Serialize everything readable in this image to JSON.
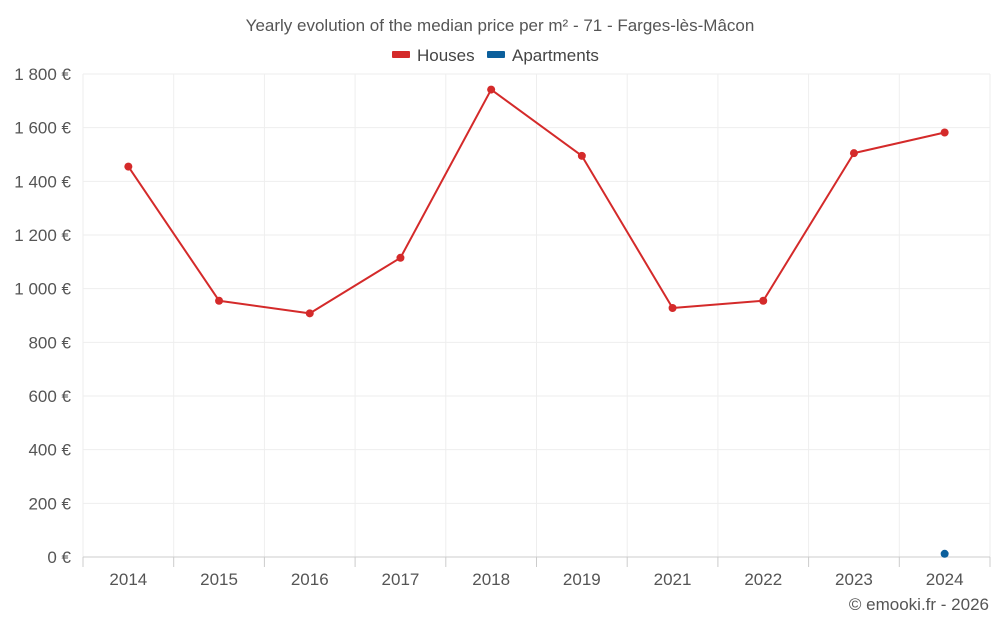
{
  "chart_data": {
    "type": "line",
    "title": "Yearly evolution of the median price per m² - 71 - Farges-lès-Mâcon",
    "categories": [
      "2014",
      "2015",
      "2016",
      "2017",
      "2018",
      "2019",
      "2021",
      "2022",
      "2023",
      "2024"
    ],
    "series": [
      {
        "name": "Houses",
        "color": "#d42a2a",
        "values": [
          1455,
          955,
          908,
          1115,
          1742,
          1495,
          928,
          955,
          1505,
          1582
        ]
      },
      {
        "name": "Apartments",
        "color": "#0b5f9c",
        "values": [
          null,
          null,
          null,
          null,
          null,
          null,
          null,
          null,
          null,
          12
        ]
      }
    ],
    "y_ticks": [
      "0 €",
      "200 €",
      "400 €",
      "600 €",
      "800 €",
      "1 000 €",
      "1 200 €",
      "1 400 €",
      "1 600 €",
      "1 800 €"
    ],
    "ylim": [
      0,
      1800
    ],
    "xlabel": "",
    "ylabel": "",
    "legend_position": "top-center",
    "grid": true
  },
  "credit": "© emooki.fr - 2026"
}
